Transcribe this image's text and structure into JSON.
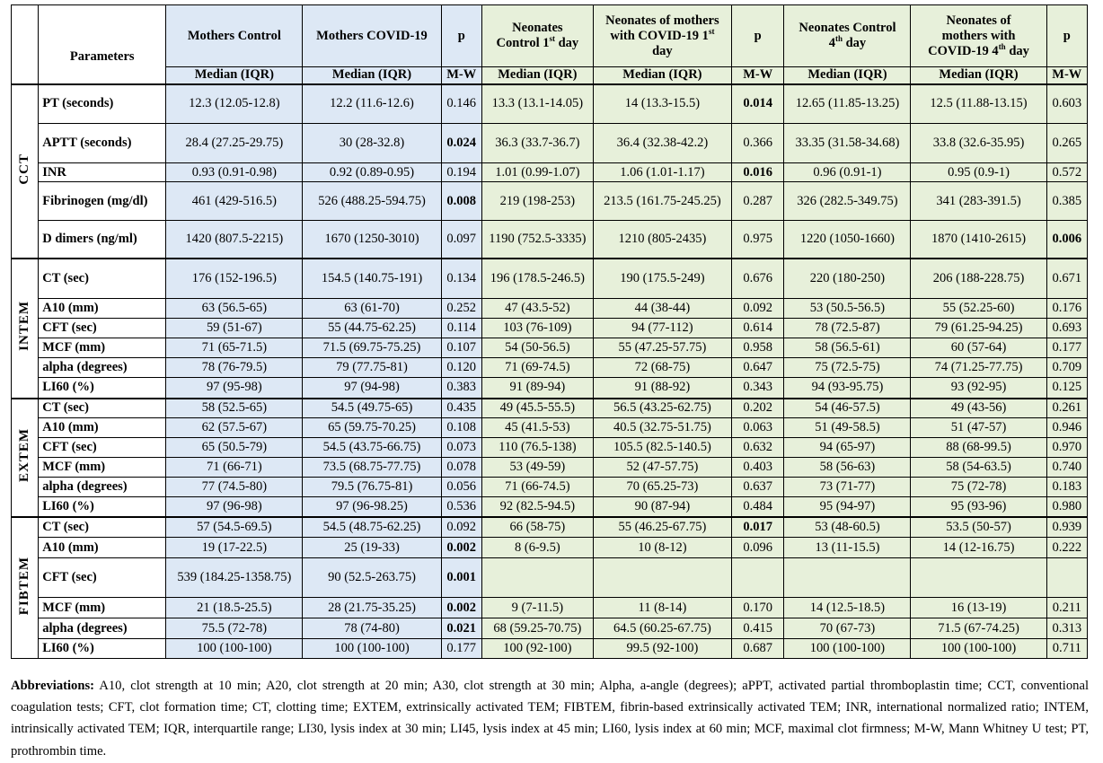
{
  "header": {
    "parameters": "Parameters",
    "mothers_control": "Mothers Control",
    "mothers_covid": "Mothers COVID-19",
    "p": "p",
    "neo_control_1": "Neonates Control 1st day",
    "neo_covid_1": "Neonates of mothers with COVID-19 1st day",
    "neo_control_4": "Neonates Control 4th day",
    "neo_covid_4": "Neonates of mothers with COVID-19 4th day",
    "median_iqr": "Median (IQR)",
    "mw": "M-W"
  },
  "groups": [
    {
      "name": "CCT",
      "rows": [
        {
          "param": "PT (seconds)",
          "c": [
            "12.3 (12.05-12.8)",
            "12.2 (11.6-12.6)",
            "0.146",
            "13.3 (13.1-14.05)",
            "14 (13.3-15.5)",
            "0.014",
            "12.65 (11.85-13.25)",
            "12.5 (11.88-13.15)",
            "0.603"
          ],
          "b": [
            5
          ]
        },
        {
          "param": "APTT (seconds)",
          "c": [
            "28.4 (27.25-29.75)",
            "30 (28-32.8)",
            "0.024",
            "36.3 (33.7-36.7)",
            "36.4 (32.38-42.2)",
            "0.366",
            "33.35 (31.58-34.68)",
            "33.8 (32.6-35.95)",
            "0.265"
          ],
          "b": [
            2
          ]
        },
        {
          "param": "INR",
          "c": [
            "0.93 (0.91-0.98)",
            "0.92 (0.89-0.95)",
            "0.194",
            "1.01 (0.99-1.07)",
            "1.06 (1.01-1.17)",
            "0.016",
            "0.96 (0.91-1)",
            "0.95 (0.9-1)",
            "0.572"
          ],
          "b": [
            5
          ]
        },
        {
          "param": "Fibrinogen (mg/dl)",
          "c": [
            "461 (429-516.5)",
            "526 (488.25-594.75)",
            "0.008",
            "219 (198-253)",
            "213.5 (161.75-245.25)",
            "0.287",
            "326 (282.5-349.75)",
            "341 (283-391.5)",
            "0.385"
          ],
          "b": [
            2
          ]
        },
        {
          "param": "D dimers (ng/ml)",
          "c": [
            "1420 (807.5-2215)",
            "1670 (1250-3010)",
            "0.097",
            "1190 (752.5-3335)",
            "1210 (805-2435)",
            "0.975",
            "1220 (1050-1660)",
            "1870 (1410-2615)",
            "0.006"
          ],
          "b": [
            8
          ]
        }
      ]
    },
    {
      "name": "INTEM",
      "rows": [
        {
          "param": "CT (sec)",
          "c": [
            "176 (152-196.5)",
            "154.5 (140.75-191)",
            "0.134",
            "196 (178.5-246.5)",
            "190 (175.5-249)",
            "0.676",
            "220 (180-250)",
            "206 (188-228.75)",
            "0.671"
          ],
          "b": []
        },
        {
          "param": "A10 (mm)",
          "c": [
            "63 (56.5-65)",
            "63 (61-70)",
            "0.252",
            "47 (43.5-52)",
            "44 (38-44)",
            "0.092",
            "53 (50.5-56.5)",
            "55 (52.25-60)",
            "0.176"
          ],
          "b": []
        },
        {
          "param": "CFT (sec)",
          "c": [
            "59 (51-67)",
            "55 (44.75-62.25)",
            "0.114",
            "103 (76-109)",
            "94 (77-112)",
            "0.614",
            "78 (72.5-87)",
            "79 (61.25-94.25)",
            "0.693"
          ],
          "b": []
        },
        {
          "param": "MCF (mm)",
          "c": [
            "71 (65-71.5)",
            "71.5 (69.75-75.25)",
            "0.107",
            "54 (50-56.5)",
            "55 (47.25-57.75)",
            "0.958",
            "58 (56.5-61)",
            "60 (57-64)",
            "0.177"
          ],
          "b": []
        },
        {
          "param": "alpha (degrees)",
          "c": [
            "78 (76-79.5)",
            "79 (77.75-81)",
            "0.120",
            "71 (69-74.5)",
            "72 (68-75)",
            "0.647",
            "75 (72.5-75)",
            "74 (71.25-77.75)",
            "0.709"
          ],
          "b": []
        },
        {
          "param": "LI60 (%)",
          "c": [
            "97 (95-98)",
            "97 (94-98)",
            "0.383",
            "91 (89-94)",
            "91 (88-92)",
            "0.343",
            "94 (93-95.75)",
            "93 (92-95)",
            "0.125"
          ],
          "b": []
        }
      ]
    },
    {
      "name": "EXTEM",
      "rows": [
        {
          "param": "CT (sec)",
          "c": [
            "58 (52.5-65)",
            "54.5 (49.75-65)",
            "0.435",
            "49 (45.5-55.5)",
            "56.5 (43.25-62.75)",
            "0.202",
            "54 (46-57.5)",
            "49 (43-56)",
            "0.261"
          ],
          "b": []
        },
        {
          "param": "A10 (mm)",
          "c": [
            "62 (57.5-67)",
            "65 (59.75-70.25)",
            "0.108",
            "45 (41.5-53)",
            "40.5 (32.75-51.75)",
            "0.063",
            "51 (49-58.5)",
            "51 (47-57)",
            "0.946"
          ],
          "b": []
        },
        {
          "param": "CFT (sec)",
          "c": [
            "65 (50.5-79)",
            "54.5 (43.75-66.75)",
            "0.073",
            "110 (76.5-138)",
            "105.5 (82.5-140.5)",
            "0.632",
            "94 (65-97)",
            "88 (68-99.5)",
            "0.970"
          ],
          "b": []
        },
        {
          "param": "MCF (mm)",
          "c": [
            "71 (66-71)",
            "73.5 (68.75-77.75)",
            "0.078",
            "53 (49-59)",
            "52 (47-57.75)",
            "0.403",
            "58 (56-63)",
            "58 (54-63.5)",
            "0.740"
          ],
          "b": []
        },
        {
          "param": "alpha (degrees)",
          "c": [
            "77 (74.5-80)",
            "79.5 (76.75-81)",
            "0.056",
            "71 (66-74.5)",
            "70 (65.25-73)",
            "0.637",
            "73 (71-77)",
            "75 (72-78)",
            "0.183"
          ],
          "b": []
        },
        {
          "param": "LI60 (%)",
          "c": [
            "97 (96-98)",
            "97 (96-98.25)",
            "0.536",
            "92 (82.5-94.5)",
            "90 (87-94)",
            "0.484",
            "95 (94-97)",
            "95 (93-96)",
            "0.980"
          ],
          "b": []
        }
      ]
    },
    {
      "name": "FIBTEM",
      "rows": [
        {
          "param": "CT (sec)",
          "c": [
            "57 (54.5-69.5)",
            "54.5 (48.75-62.25)",
            "0.092",
            "66 (58-75)",
            "55 (46.25-67.75)",
            "0.017",
            "53 (48-60.5)",
            "53.5 (50-57)",
            "0.939"
          ],
          "b": [
            5
          ]
        },
        {
          "param": "A10 (mm)",
          "c": [
            "19 (17-22.5)",
            "25 (19-33)",
            "0.002",
            "8 (6-9.5)",
            "10 (8-12)",
            "0.096",
            "13 (11-15.5)",
            "14 (12-16.75)",
            "0.222"
          ],
          "b": [
            2
          ]
        },
        {
          "param": "CFT (sec)",
          "c": [
            "539 (184.25-1358.75)",
            "90 (52.5-263.75)",
            "0.001",
            "",
            "",
            "",
            "",
            "",
            ""
          ],
          "b": [
            2
          ]
        },
        {
          "param": "MCF (mm)",
          "c": [
            "21 (18.5-25.5)",
            "28 (21.75-35.25)",
            "0.002",
            "9 (7-11.5)",
            "11 (8-14)",
            "0.170",
            "14 (12.5-18.5)",
            "16 (13-19)",
            "0.211"
          ],
          "b": [
            2
          ]
        },
        {
          "param": "alpha (degrees)",
          "c": [
            "75.5 (72-78)",
            "78 (74-80)",
            "0.021",
            "68 (59.25-70.75)",
            "64.5 (60.25-67.75)",
            "0.415",
            "70 (67-73)",
            "71.5 (67-74.25)",
            "0.313"
          ],
          "b": [
            2
          ]
        },
        {
          "param": "LI60 (%)",
          "c": [
            "100 (100-100)",
            "100 (100-100)",
            "0.177",
            "100 (92-100)",
            "99.5 (92-100)",
            "0.687",
            "100 (100-100)",
            "100 (100-100)",
            "0.711"
          ],
          "b": []
        }
      ]
    }
  ],
  "abbreviations": {
    "label": "Abbreviations:",
    "text": "A10, clot strength at 10 min; A20, clot strength at 20 min; A30, clot strength at 30 min; Alpha, a-angle (degrees); aPPT, activated partial thromboplastin time; CCT, conventional coagulation tests; CFT, clot formation time; CT, clotting time; EXTEM, extrinsically activated TEM; FIBTEM, fibrin-based extrinsically activated TEM; INR, international normalized ratio; INTEM, intrinsically activated TEM; IQR, interquartile range; LI30, lysis index at 30 min; LI45, lysis index at 45 min; LI60, lysis index at 60 min; MCF, maximal clot firmness; M-W, Mann Whitney U test; PT, prothrombin time."
  }
}
